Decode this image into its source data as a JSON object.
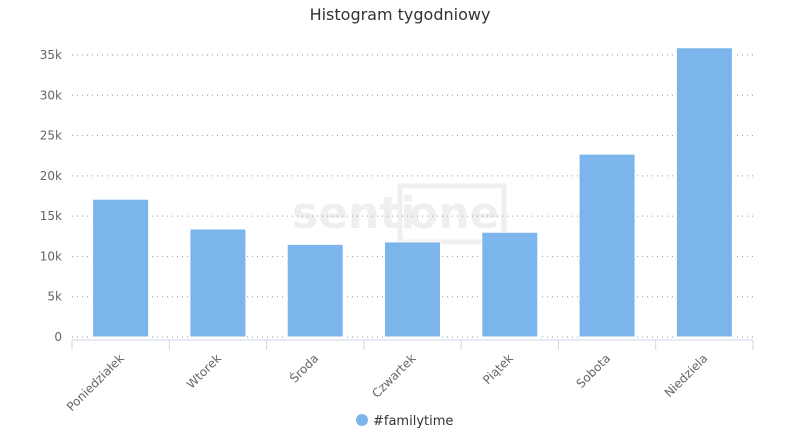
{
  "chart_data": {
    "type": "bar",
    "title": "Histogram tygodniowy",
    "categories": [
      "Poniedziałek",
      "Wtorek",
      "Środa",
      "Czwartek",
      "Piątek",
      "Sobota",
      "Niedziela"
    ],
    "series": [
      {
        "name": "#familytime",
        "values": [
          17100,
          13400,
          11500,
          11800,
          13000,
          22700,
          35900
        ],
        "color": "#7cb5ec"
      }
    ],
    "yticks": [
      "0",
      "5k",
      "10k",
      "15k",
      "20k",
      "25k",
      "30k",
      "35k"
    ],
    "ylim": [
      0,
      35000
    ],
    "grid": true,
    "legend": "bottom-center",
    "watermark": "sentione"
  }
}
